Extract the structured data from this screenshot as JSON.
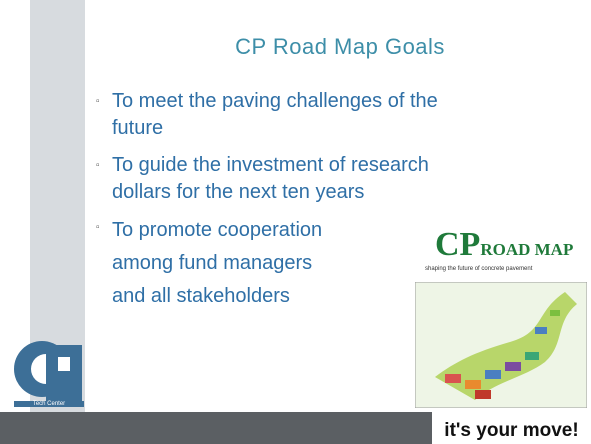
{
  "title": "CP Road Map Goals",
  "bullets": [
    [
      "To meet the paving challenges of the",
      "future"
    ],
    [
      "To guide the investment of research",
      "dollars for the next ten years"
    ],
    [
      "To promote cooperation",
      "among fund managers",
      "and all stakeholders"
    ]
  ],
  "roadmap_logo": {
    "cp": "CP",
    "road_map": "ROAD MAP",
    "tagline": "shaping the future of concrete pavement"
  },
  "tagline": "it's your move!",
  "cp_logo_caption": "Tech Center"
}
